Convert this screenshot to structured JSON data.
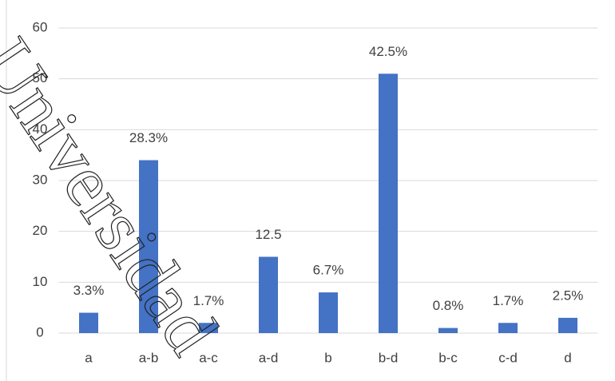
{
  "chart_data": {
    "type": "bar",
    "categories": [
      "a",
      "a-b",
      "a-c",
      "a-d",
      "b",
      "b-d",
      "b-c",
      "c-d",
      "d"
    ],
    "values": [
      4,
      34,
      2,
      15,
      8,
      51,
      1,
      2,
      3
    ],
    "annotations": [
      "3.3%",
      "28.3%",
      "1.7%",
      "12.5",
      "6.7%",
      "42.5%",
      "0.8%",
      "1.7%",
      "2.5%"
    ],
    "color": "#4472c4",
    "ylim": [
      0,
      60
    ],
    "yticks": [
      0,
      10,
      20,
      30,
      40,
      50,
      60
    ],
    "grid": true,
    "watermark": "Universidad"
  }
}
